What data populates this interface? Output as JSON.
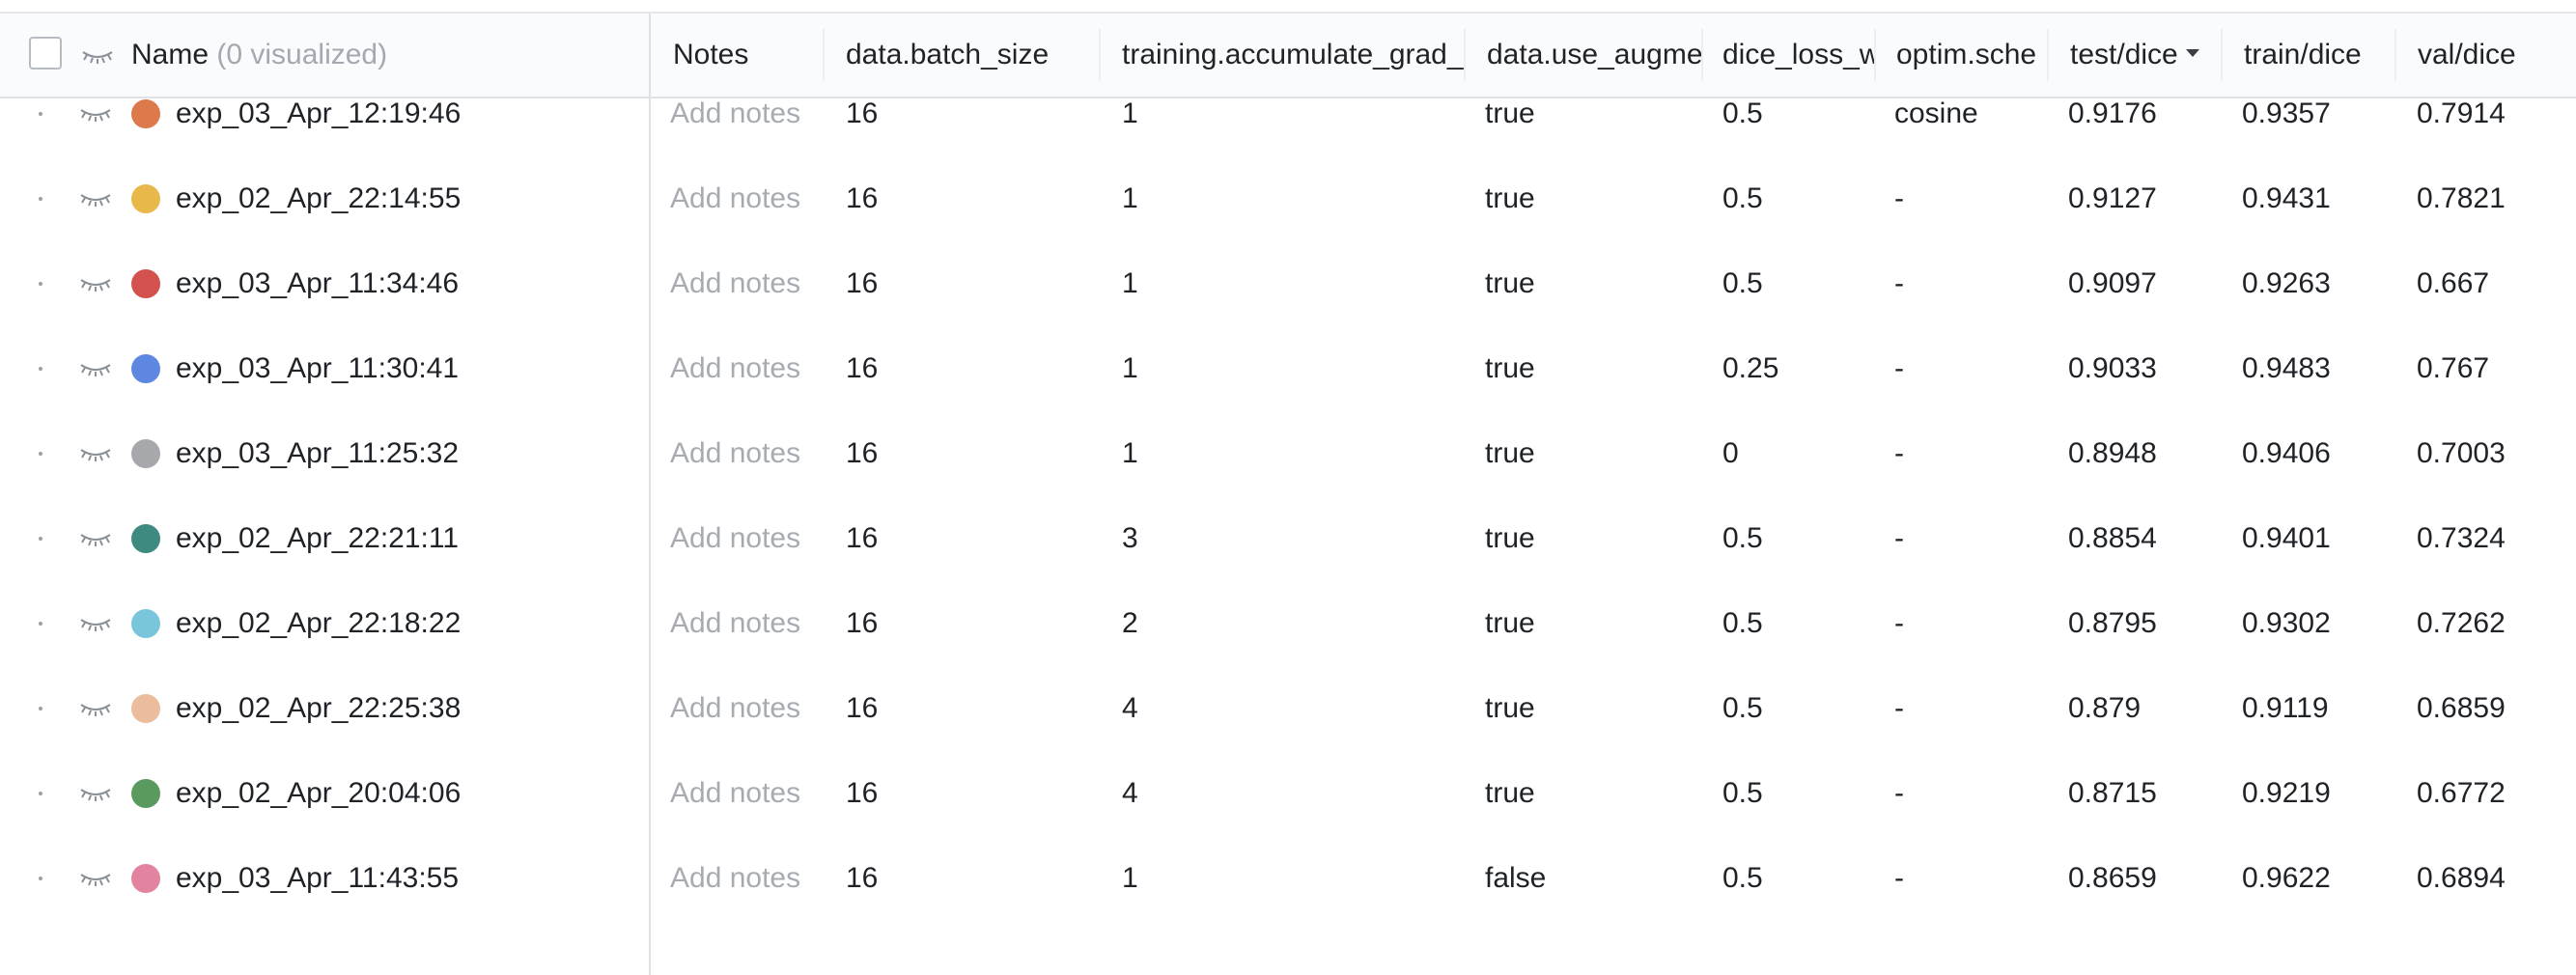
{
  "header": {
    "name_label": "Name",
    "name_count": "(0 visualized)",
    "columns": [
      "Notes",
      "data.batch_size",
      "training.accumulate_grad_",
      "data.use_augme",
      "dice_loss_w",
      "optim.sche",
      "test/dice",
      "train/dice",
      "val/dice"
    ],
    "sort_column": "test/dice",
    "sort_direction": "descending"
  },
  "rows": [
    {
      "name": "exp_03_Apr_12:19:46",
      "color": "#dd7a4b",
      "notes": "Add notes",
      "batch_size": "16",
      "accumulate": "1",
      "augment": "true",
      "dice_loss": "0.5",
      "optim": "cosine",
      "test": "0.9176",
      "train": "0.9357",
      "val": "0.7914"
    },
    {
      "name": "exp_02_Apr_22:14:55",
      "color": "#e8b84a",
      "notes": "Add notes",
      "batch_size": "16",
      "accumulate": "1",
      "augment": "true",
      "dice_loss": "0.5",
      "optim": "-",
      "test": "0.9127",
      "train": "0.9431",
      "val": "0.7821"
    },
    {
      "name": "exp_03_Apr_11:34:46",
      "color": "#d4524e",
      "notes": "Add notes",
      "batch_size": "16",
      "accumulate": "1",
      "augment": "true",
      "dice_loss": "0.5",
      "optim": "-",
      "test": "0.9097",
      "train": "0.9263",
      "val": "0.667"
    },
    {
      "name": "exp_03_Apr_11:30:41",
      "color": "#5d87e0",
      "notes": "Add notes",
      "batch_size": "16",
      "accumulate": "1",
      "augment": "true",
      "dice_loss": "0.25",
      "optim": "-",
      "test": "0.9033",
      "train": "0.9483",
      "val": "0.767"
    },
    {
      "name": "exp_03_Apr_11:25:32",
      "color": "#a6a8ab",
      "notes": "Add notes",
      "batch_size": "16",
      "accumulate": "1",
      "augment": "true",
      "dice_loss": "0",
      "optim": "-",
      "test": "0.8948",
      "train": "0.9406",
      "val": "0.7003"
    },
    {
      "name": "exp_02_Apr_22:21:11",
      "color": "#3f8a80",
      "notes": "Add notes",
      "batch_size": "16",
      "accumulate": "3",
      "augment": "true",
      "dice_loss": "0.5",
      "optim": "-",
      "test": "0.8854",
      "train": "0.9401",
      "val": "0.7324"
    },
    {
      "name": "exp_02_Apr_22:18:22",
      "color": "#79c6dc",
      "notes": "Add notes",
      "batch_size": "16",
      "accumulate": "2",
      "augment": "true",
      "dice_loss": "0.5",
      "optim": "-",
      "test": "0.8795",
      "train": "0.9302",
      "val": "0.7262"
    },
    {
      "name": "exp_02_Apr_22:25:38",
      "color": "#ebbd9d",
      "notes": "Add notes",
      "batch_size": "16",
      "accumulate": "4",
      "augment": "true",
      "dice_loss": "0.5",
      "optim": "-",
      "test": "0.879",
      "train": "0.9119",
      "val": "0.6859"
    },
    {
      "name": "exp_02_Apr_20:04:06",
      "color": "#5a9a5e",
      "notes": "Add notes",
      "batch_size": "16",
      "accumulate": "4",
      "augment": "true",
      "dice_loss": "0.5",
      "optim": "-",
      "test": "0.8715",
      "train": "0.9219",
      "val": "0.6772"
    },
    {
      "name": "exp_03_Apr_11:43:55",
      "color": "#e283a0",
      "notes": "Add notes",
      "batch_size": "16",
      "accumulate": "1",
      "augment": "false",
      "dice_loss": "0.5",
      "optim": "-",
      "test": "0.8659",
      "train": "0.9622",
      "val": "0.6894"
    }
  ]
}
